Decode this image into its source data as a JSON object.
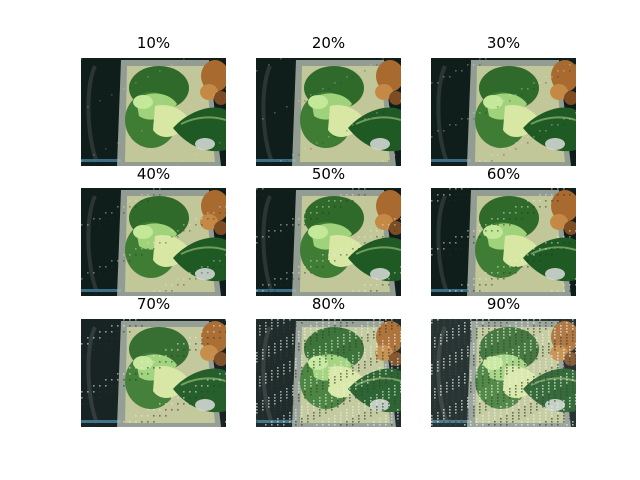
{
  "panels": [
    {
      "label": "10%",
      "level": 0.1
    },
    {
      "label": "20%",
      "level": 0.2
    },
    {
      "label": "30%",
      "level": 0.3
    },
    {
      "label": "40%",
      "level": 0.4
    },
    {
      "label": "50%",
      "level": 0.5
    },
    {
      "label": "60%",
      "level": 0.6
    },
    {
      "label": "70%",
      "level": 0.7
    },
    {
      "label": "80%",
      "level": 0.8
    },
    {
      "label": "90%",
      "level": 0.9
    }
  ],
  "colors": {
    "background": "#ffffff",
    "dark_backdrop": "#0f1d1b",
    "container_plastic": "#a9b3a8",
    "bok_choy_light": "#9fd27a",
    "bok_choy_dark": "#2f6a2a",
    "spinach": "#1f5a25",
    "fried_food": "#a86a2e",
    "blue_edge": "#3b6e86"
  }
}
